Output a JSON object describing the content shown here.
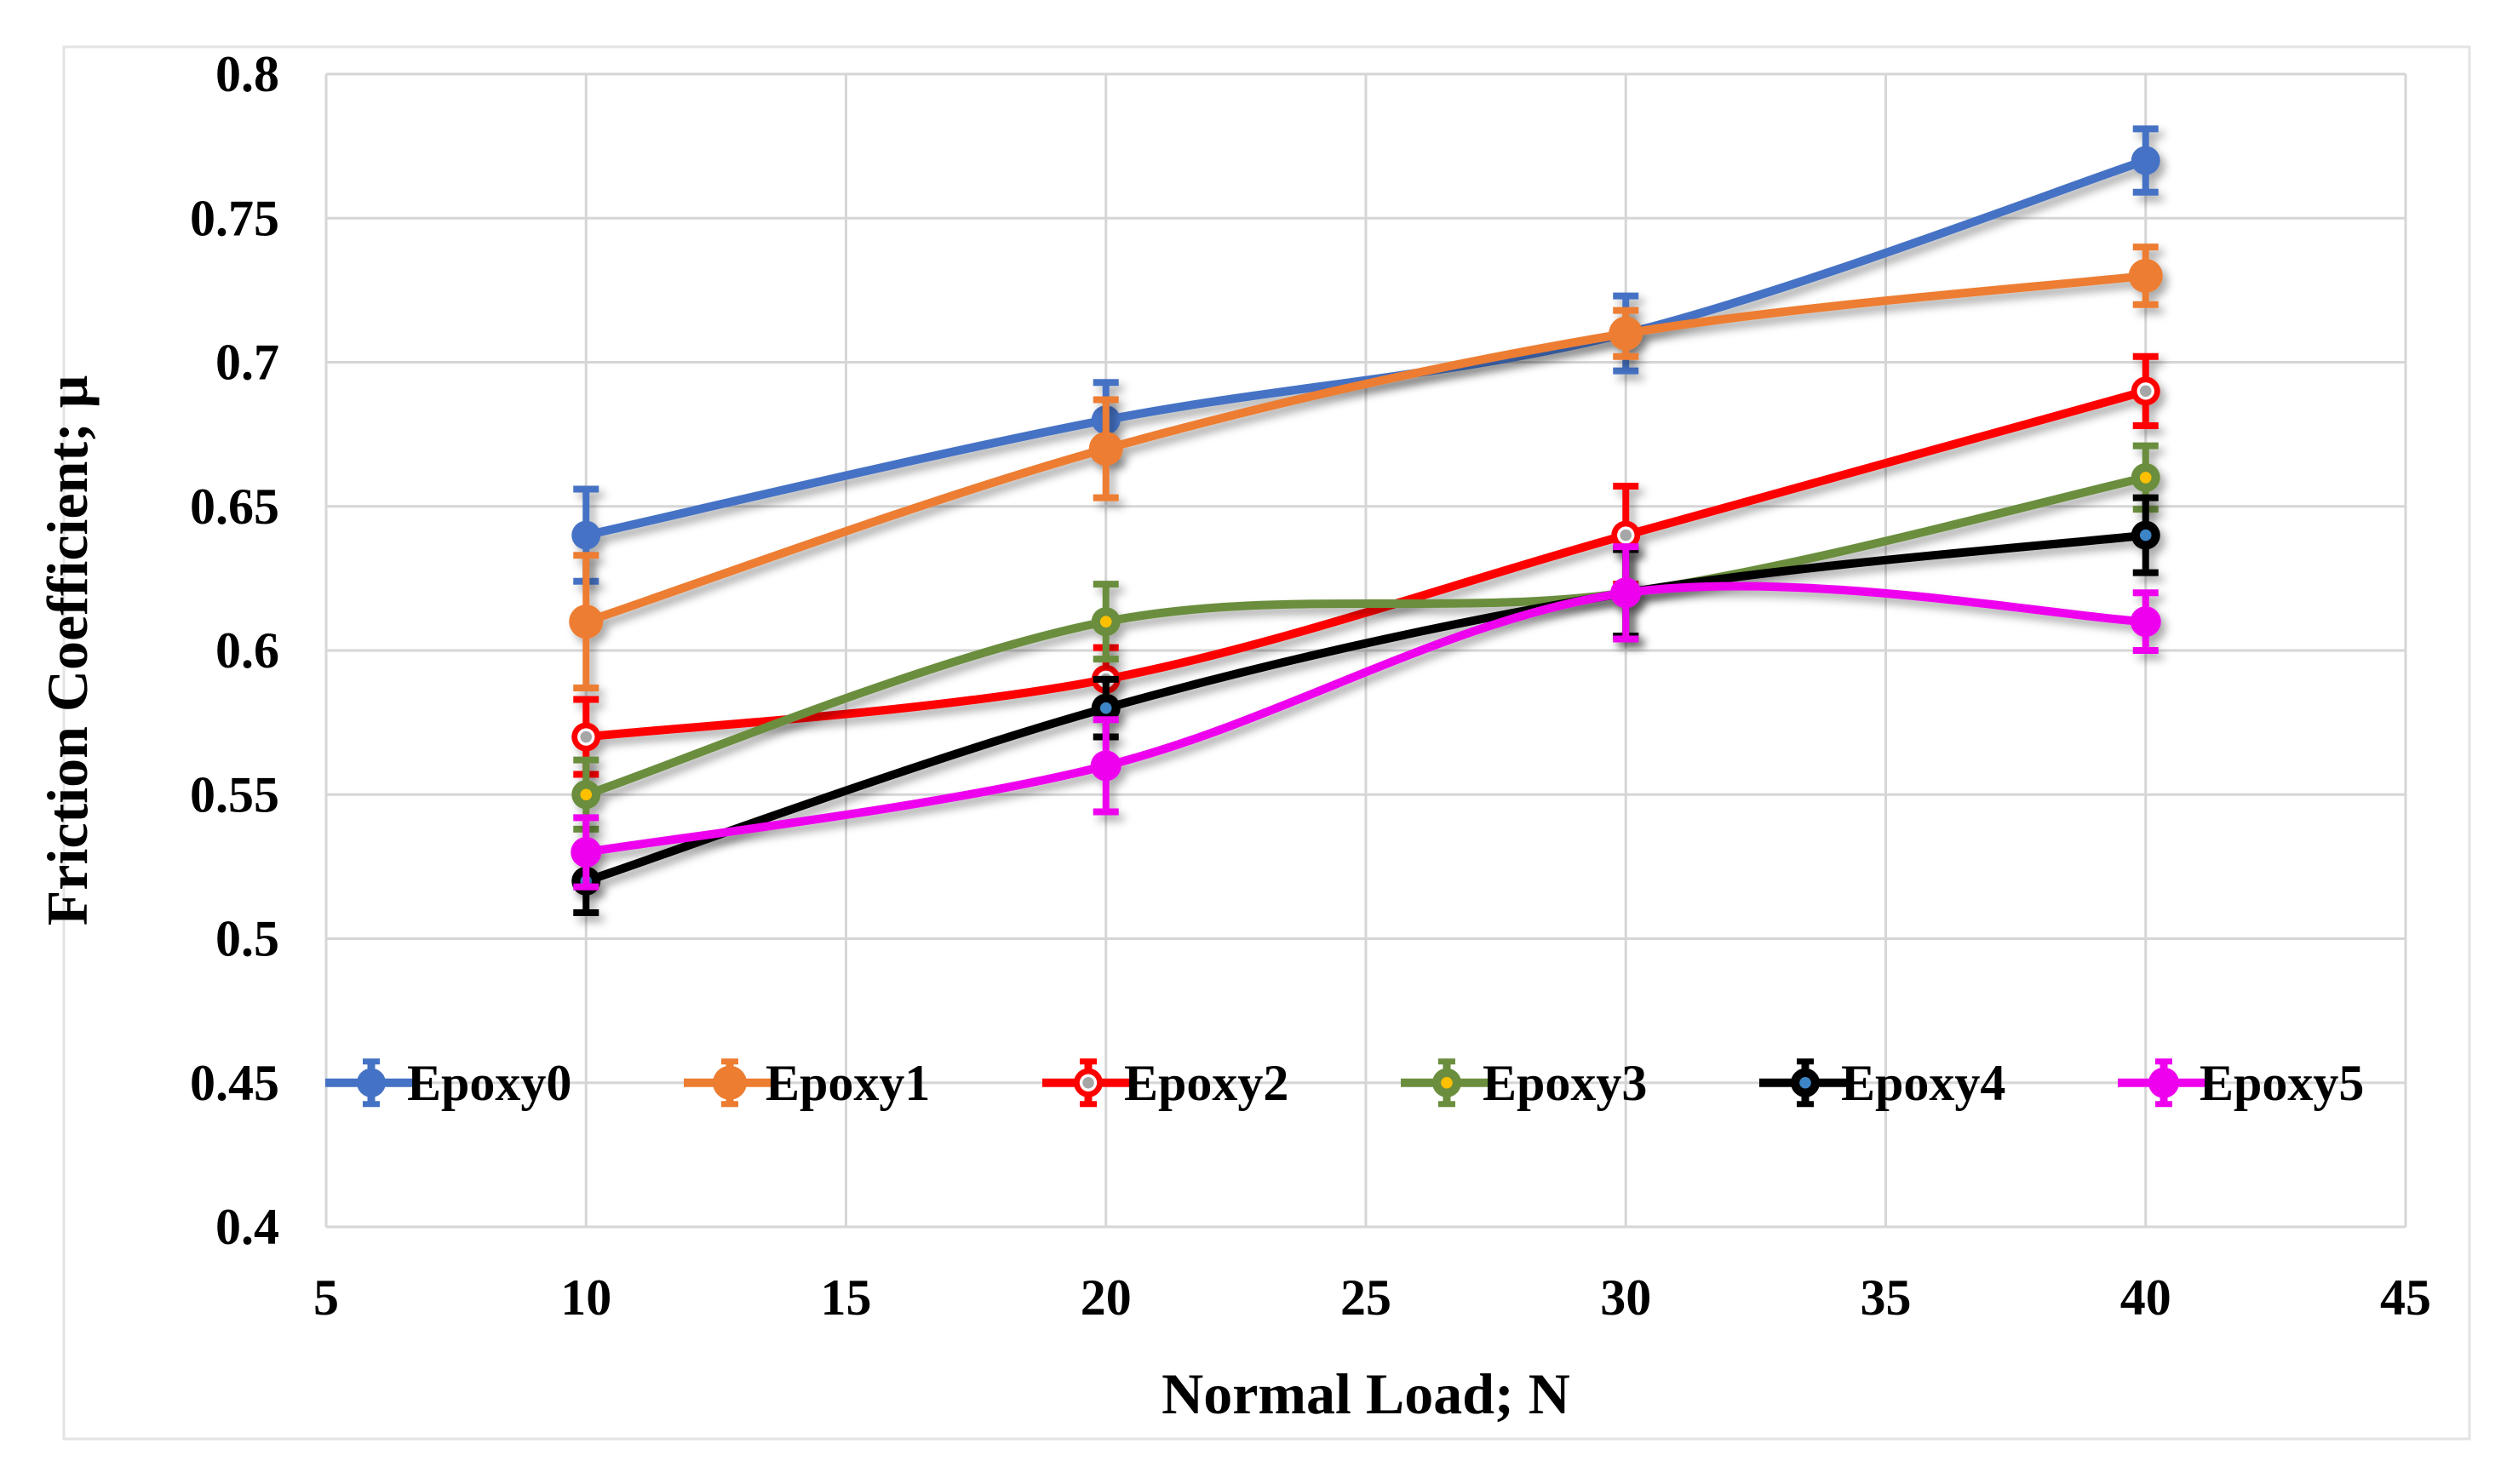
{
  "figure": {
    "background": "#FFFFFF",
    "border_color": "#E3E3E3"
  },
  "chart_data": {
    "type": "line",
    "title": "",
    "xlabel": "Normal Load; N",
    "ylabel": "Friction Coefficient; μ",
    "x": [
      10,
      20,
      30,
      40
    ],
    "xlim": [
      5,
      45
    ],
    "ylim": [
      0.4,
      0.8
    ],
    "x_ticks": [
      5,
      10,
      15,
      20,
      25,
      30,
      35,
      40,
      45
    ],
    "x_tick_labels": [
      "5",
      "10",
      "15",
      "20",
      "25",
      "30",
      "35",
      "40",
      "45"
    ],
    "y_ticks": [
      0.4,
      0.45,
      0.5,
      0.55,
      0.6,
      0.65,
      0.7,
      0.75,
      0.8
    ],
    "y_tick_labels": [
      "0.4",
      "0.45",
      "0.5",
      "0.55",
      "0.6",
      "0.65",
      "0.7",
      "0.75",
      "0.8"
    ],
    "grid": true,
    "grid_color": "#D6D6D6",
    "legend_position": "inside-bottom",
    "line_style": "smooth",
    "error_bars": true,
    "series": [
      {
        "name": "Epoxy0",
        "color": "#4472C4",
        "marker": "circle",
        "marker_radius": 17,
        "inner_ring_color": null,
        "inner_dot_color": null,
        "values": [
          0.64,
          0.68,
          0.71,
          0.77
        ],
        "errors": [
          0.016,
          0.013,
          0.013,
          0.011
        ]
      },
      {
        "name": "Epoxy1",
        "color": "#ED7D31",
        "marker": "circle",
        "marker_radius": 20,
        "inner_ring_color": null,
        "inner_dot_color": null,
        "values": [
          0.61,
          0.67,
          0.71,
          0.73
        ],
        "errors": [
          0.023,
          0.017,
          0.008,
          0.01
        ]
      },
      {
        "name": "Epoxy2",
        "color": "#FF0000",
        "marker": "circle",
        "marker_radius": 17,
        "inner_ring_color": "#FFFFFF",
        "inner_dot_color": "#A6A6A6",
        "values": [
          0.57,
          0.59,
          0.64,
          0.69
        ],
        "errors": [
          0.013,
          0.011,
          0.017,
          0.012
        ]
      },
      {
        "name": "Epoxy3",
        "color": "#6B8E3E",
        "marker": "circle",
        "marker_radius": 17,
        "inner_ring_color": null,
        "inner_dot_color": "#FFC000",
        "values": [
          0.55,
          0.61,
          0.62,
          0.66
        ],
        "errors": [
          0.012,
          0.013,
          0.015,
          0.011
        ]
      },
      {
        "name": "Epoxy4",
        "color": "#000000",
        "marker": "circle",
        "marker_radius": 17,
        "inner_ring_color": null,
        "inner_dot_color": "#3D85C6",
        "values": [
          0.52,
          0.58,
          0.62,
          0.64
        ],
        "errors": [
          0.011,
          0.01,
          0.015,
          0.013
        ]
      },
      {
        "name": "Epoxy5",
        "color": "#EE00EE",
        "marker": "circle",
        "marker_radius": 18,
        "inner_ring_color": null,
        "inner_dot_color": null,
        "values": [
          0.53,
          0.56,
          0.62,
          0.61
        ],
        "errors": [
          0.012,
          0.016,
          0.016,
          0.01
        ]
      }
    ]
  }
}
